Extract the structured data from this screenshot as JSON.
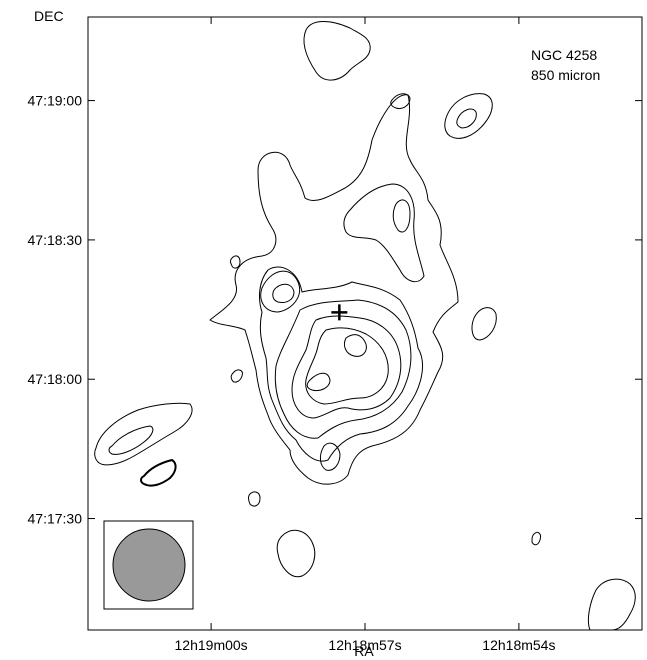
{
  "chart_data": {
    "type": "contour",
    "title": "",
    "annotation_lines": [
      "NGC 4258",
      "850 micron"
    ],
    "xlabel": "RA",
    "ylabel": "DEC",
    "x_ticks": [
      "12h19m00s",
      "12h18m57s",
      "12h18m54s"
    ],
    "y_ticks": [
      "47:19:00",
      "47:18:30",
      "47:18:00",
      "47:17:30"
    ],
    "x_tick_seconds": [
      0,
      3,
      6
    ],
    "y_tick_arcsec": [
      -60,
      -90,
      -120,
      -150
    ],
    "x_range_seconds": [
      -2.4,
      8.4
    ],
    "y_range_arcsec": [
      -42,
      -174
    ],
    "grid": false,
    "nucleus_marker": {
      "symbol": "cross",
      "x_seconds": 2.5,
      "y_arcsec": -105.6
    },
    "beam": {
      "shape": "circle",
      "fill": "#999999"
    },
    "contour_levels": 5,
    "negative_contour_style": "bold"
  }
}
